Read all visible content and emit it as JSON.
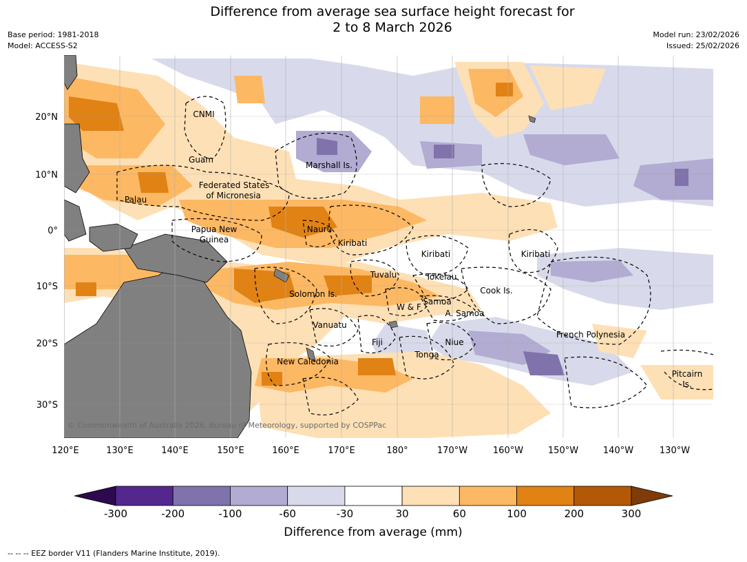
{
  "title": {
    "line1": "Difference from average sea surface height forecast for",
    "line2": "2 to 8 March 2026"
  },
  "meta": {
    "base_period": "Base period: 1981-2018",
    "model": "Model: ACCESS-S2",
    "model_run": "Model run: 23/02/2026",
    "issued": "Issued: 25/02/2026"
  },
  "map": {
    "lat_labels": [
      "20°N",
      "10°N",
      "0°",
      "10°S",
      "20°S",
      "30°S"
    ],
    "lon_labels": [
      "120°E",
      "130°E",
      "140°E",
      "150°E",
      "160°E",
      "170°E",
      "180°",
      "170°W",
      "160°W",
      "150°W",
      "140°W",
      "130°W"
    ],
    "regions": [
      "CNMI",
      "Guam",
      "Marshall Is.",
      "Federated States",
      "of Micronesia",
      "Palau",
      "Papua New",
      "Guinea",
      "Nauru",
      "Kiribati",
      "Kiribati",
      "Kiribati",
      "Tuvalu",
      "Tokelau",
      "Solomon Is.",
      "Cook Is.",
      "W & F",
      "Samoa",
      "A. Samoa",
      "Vanuatu",
      "Fiji",
      "Niue",
      "French Polynesia",
      "Tonga",
      "New Caledonia",
      "Pitcairn",
      "Is."
    ],
    "copyright": "© Commonwealth of Australia 2026, Bureau of Meteorology, supported by COSPPac"
  },
  "colorbar": {
    "labels": [
      "-300",
      "-200",
      "-100",
      "-60",
      "-30",
      "30",
      "60",
      "100",
      "200",
      "300"
    ],
    "title": "Difference from average (mm)",
    "colors": [
      "#2d0a4e",
      "#54278f",
      "#8073ac",
      "#b2abd2",
      "#d8daeb",
      "#ffffff",
      "#fee0b6",
      "#fdb863",
      "#e08214",
      "#b35806",
      "#7f3b08"
    ]
  },
  "colors": {
    "land": "#808080",
    "grid": "#9a9a9a"
  },
  "footer": "--  --  -- EEZ border V11 (Flanders Marine Institute, 2019)."
}
